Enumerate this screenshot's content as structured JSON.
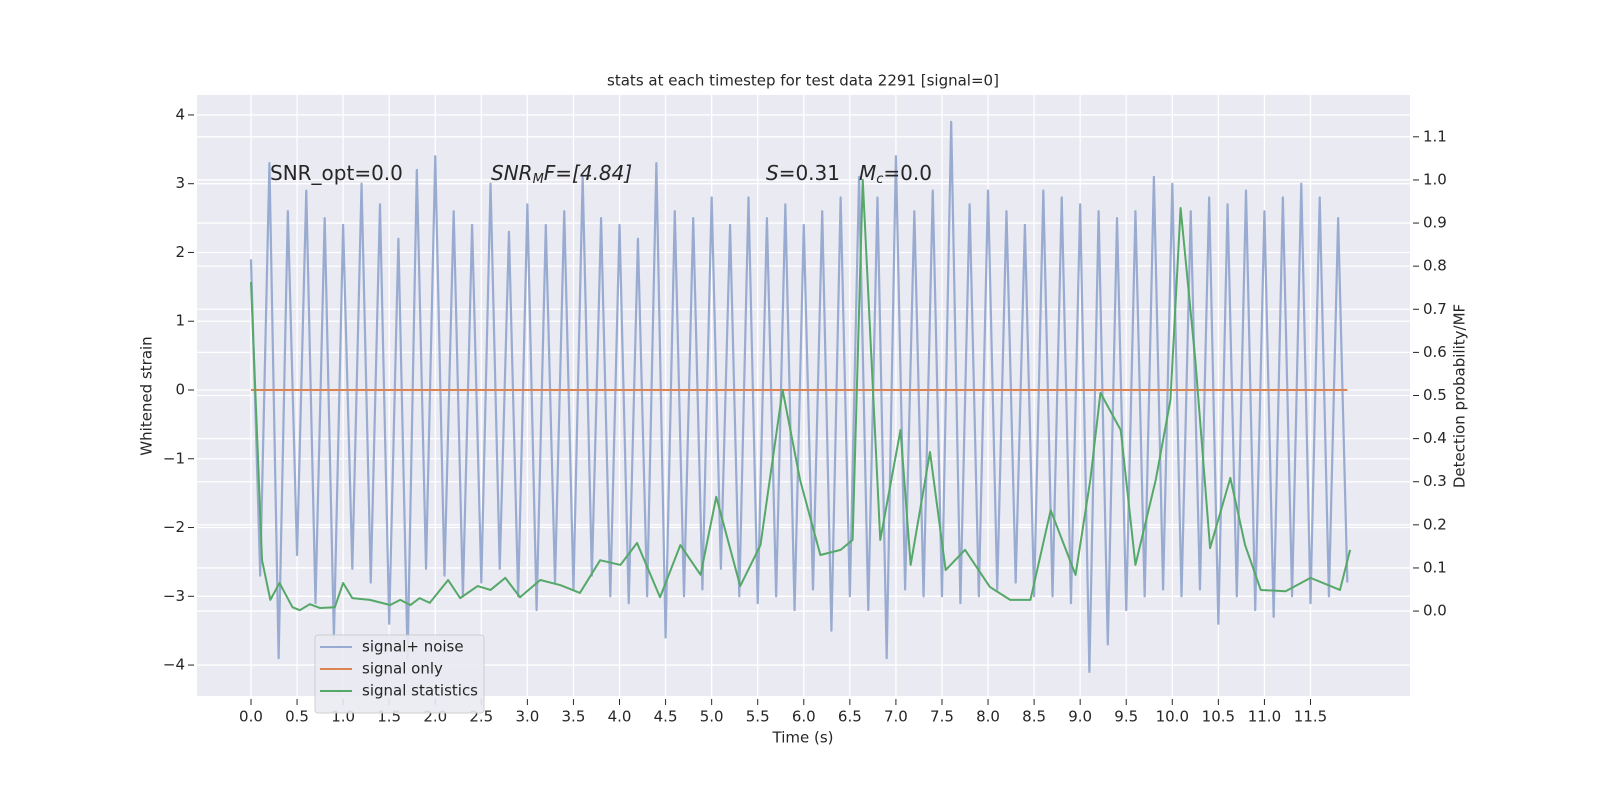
{
  "chart_data": {
    "type": "line",
    "title": "stats at each timestep for test data 2291 [signal=0]",
    "xlabel": "Time (s)",
    "ylabel": "Whitened strain",
    "y2label": "Detection probability/MF",
    "annotations": [
      [
        "SNR_opt=0.0"
      ],
      [
        "SNR",
        "M",
        "F=[4.84]"
      ],
      [
        "S",
        "=0.31"
      ],
      [
        "M",
        "c",
        "=0.0"
      ]
    ],
    "xlim": [
      -0.586,
      12.58
    ],
    "ylim": [
      -4.45,
      4.29
    ],
    "y2lim": [
      -0.197,
      1.197
    ],
    "xticks": [
      {
        "value": 0,
        "label": "0.0"
      },
      0.5,
      {
        "value": 1,
        "label": "1.0"
      },
      1.5,
      {
        "value": 2,
        "label": "2.0"
      },
      2.5,
      {
        "value": 3,
        "label": "3.0"
      },
      3.5,
      {
        "value": 4,
        "label": "4.0"
      },
      4.5,
      {
        "value": 5,
        "label": "5.0"
      },
      5.5,
      {
        "value": 6,
        "label": "6.0"
      },
      6.5,
      {
        "value": 7,
        "label": "7.0"
      },
      7.5,
      {
        "value": 8,
        "label": "8.0"
      },
      8.5,
      {
        "value": 9,
        "label": "9.0"
      },
      9.5,
      {
        "value": 10,
        "label": "10.0"
      },
      10.5,
      {
        "value": 11,
        "label": "11.0"
      },
      11.5
    ],
    "yticks": [
      {
        "value": -4,
        "label": "−4"
      },
      {
        "value": -3,
        "label": "−3"
      },
      {
        "value": -2,
        "label": "−2"
      },
      {
        "value": -1,
        "label": "−1"
      },
      0,
      1,
      2,
      3,
      4
    ],
    "y2ticks": [
      {
        "value": 0,
        "label": "0.0"
      },
      0.1,
      0.2,
      0.3,
      0.4,
      0.5,
      0.6,
      0.7,
      0.8,
      0.9,
      {
        "value": 1,
        "label": "1.0"
      },
      1.1
    ],
    "grid": true,
    "legend": "lower left",
    "series": [
      {
        "name": "signal+ noise",
        "color": "#99abd0",
        "x": [
          0.0,
          0.1,
          0.2,
          0.3,
          0.4,
          0.5,
          0.6,
          0.7,
          0.8,
          0.9,
          1.0,
          1.1,
          1.2,
          1.3,
          1.4,
          1.5,
          1.6,
          1.7,
          1.8,
          1.9,
          2.0,
          2.1,
          2.2,
          2.3,
          2.4,
          2.5,
          2.6,
          2.7,
          2.8,
          2.9,
          3.0,
          3.1,
          3.2,
          3.3,
          3.4,
          3.5,
          3.6,
          3.7,
          3.8,
          3.9,
          4.0,
          4.1,
          4.2,
          4.3,
          4.4,
          4.5,
          4.6,
          4.7,
          4.8,
          4.9,
          5.0,
          5.1,
          5.2,
          5.3,
          5.4,
          5.5,
          5.6,
          5.7,
          5.8,
          5.9,
          6.0,
          6.1,
          6.2,
          6.3,
          6.4,
          6.5,
          6.6,
          6.7,
          6.8,
          6.9,
          7.0,
          7.1,
          7.2,
          7.3,
          7.4,
          7.5,
          7.6,
          7.7,
          7.8,
          7.9,
          8.0,
          8.1,
          8.2,
          8.3,
          8.4,
          8.5,
          8.6,
          8.7,
          8.8,
          8.9,
          9.0,
          9.1,
          9.2,
          9.3,
          9.4,
          9.5,
          9.6,
          9.7,
          9.8,
          9.9,
          10.0,
          10.1,
          10.2,
          10.3,
          10.4,
          10.5,
          10.6,
          10.7,
          10.8,
          10.9,
          11.0,
          11.1,
          11.2,
          11.3,
          11.4,
          11.5,
          11.6,
          11.7,
          11.8,
          11.9
        ],
        "values": [
          1.9,
          -2.7,
          3.3,
          -3.9,
          2.6,
          -2.4,
          2.9,
          -3.1,
          2.5,
          -3.6,
          2.4,
          -2.6,
          3.0,
          -2.8,
          2.7,
          -3.4,
          2.2,
          -3.9,
          3.2,
          -2.6,
          3.4,
          -2.7,
          2.6,
          -3.0,
          2.4,
          -2.8,
          3.0,
          -2.6,
          2.3,
          -3.0,
          2.7,
          -3.2,
          2.4,
          -2.8,
          2.6,
          -2.9,
          3.1,
          -2.7,
          2.5,
          -3.0,
          2.4,
          -3.1,
          2.2,
          -3.0,
          3.3,
          -3.6,
          2.6,
          -3.0,
          2.5,
          -2.9,
          2.8,
          -2.6,
          2.4,
          -3.0,
          2.8,
          -3.1,
          2.5,
          -3.0,
          2.7,
          -3.2,
          2.4,
          -2.9,
          2.6,
          -3.5,
          2.8,
          -3.0,
          3.1,
          -3.2,
          2.8,
          -3.9,
          3.4,
          -2.9,
          2.6,
          -3.0,
          2.9,
          -3.0,
          3.9,
          -3.1,
          2.7,
          -3.0,
          2.9,
          -2.9,
          2.6,
          -2.8,
          2.4,
          -3.0,
          2.9,
          -3.0,
          2.8,
          -3.1,
          2.7,
          -4.1,
          2.6,
          -3.7,
          2.5,
          -3.2,
          2.6,
          -3.0,
          3.1,
          -2.9,
          3.0,
          -3.0,
          2.6,
          -2.9,
          2.8,
          -3.4,
          2.7,
          -3.0,
          2.9,
          -3.2,
          2.6,
          -3.3,
          2.8,
          -3.0,
          3.0,
          -3.1,
          2.8,
          -3.0,
          2.5,
          -2.8
        ]
      },
      {
        "name": "signal only",
        "color": "#dd8452",
        "x": [
          0.0,
          11.9
        ],
        "values": [
          0,
          0
        ]
      },
      {
        "name": "signal statistics",
        "color": "#55a868",
        "axis": "y2",
        "x": [
          0.0,
          0.12,
          0.21,
          0.31,
          0.45,
          0.53,
          0.64,
          0.75,
          0.91,
          1.0,
          1.1,
          1.29,
          1.51,
          1.62,
          1.73,
          1.83,
          1.94,
          2.14,
          2.27,
          2.46,
          2.6,
          2.76,
          2.92,
          3.14,
          3.36,
          3.57,
          3.79,
          4.01,
          4.19,
          4.44,
          4.66,
          4.88,
          5.05,
          5.31,
          5.53,
          5.77,
          5.96,
          6.18,
          6.4,
          6.53,
          6.64,
          6.83,
          7.05,
          7.16,
          7.37,
          7.54,
          7.75,
          8.02,
          8.24,
          8.46,
          8.68,
          8.95,
          9.11,
          9.22,
          9.44,
          9.6,
          9.82,
          9.98,
          10.09,
          10.25,
          10.41,
          10.63,
          10.79,
          10.96,
          11.23,
          11.5,
          11.82,
          11.93
        ],
        "values": [
          0.763,
          0.118,
          0.026,
          0.065,
          0.009,
          0.002,
          0.016,
          0.007,
          0.009,
          0.065,
          0.03,
          0.026,
          0.014,
          0.026,
          0.014,
          0.03,
          0.019,
          0.072,
          0.03,
          0.058,
          0.049,
          0.077,
          0.032,
          0.072,
          0.06,
          0.042,
          0.118,
          0.107,
          0.158,
          0.032,
          0.153,
          0.084,
          0.265,
          0.058,
          0.153,
          0.513,
          0.304,
          0.13,
          0.142,
          0.165,
          1.0,
          0.165,
          0.42,
          0.107,
          0.369,
          0.095,
          0.142,
          0.056,
          0.026,
          0.026,
          0.234,
          0.084,
          0.304,
          0.506,
          0.42,
          0.107,
          0.304,
          0.49,
          0.935,
          0.582,
          0.146,
          0.309,
          0.153,
          0.049,
          0.046,
          0.077,
          0.049,
          0.142
        ]
      }
    ]
  }
}
